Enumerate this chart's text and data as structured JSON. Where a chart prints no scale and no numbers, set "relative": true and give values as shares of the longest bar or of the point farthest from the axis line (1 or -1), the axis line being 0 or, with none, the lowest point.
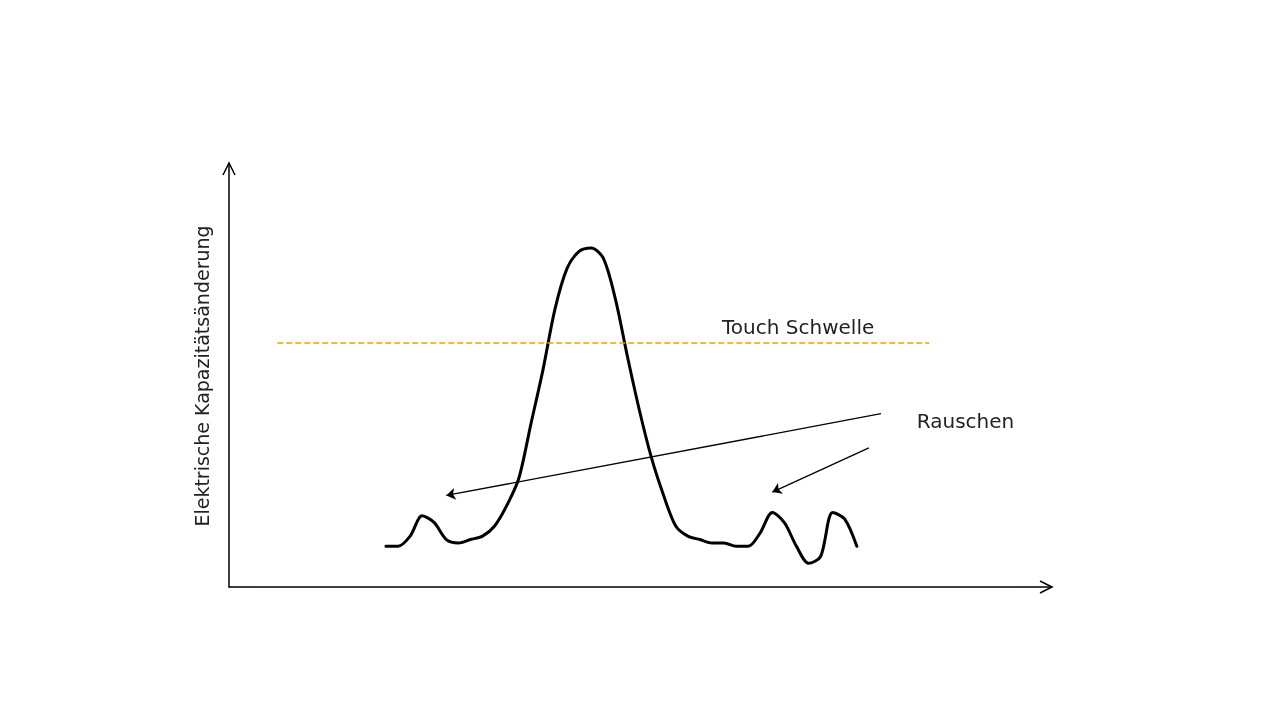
{
  "chart_data": {
    "type": "line",
    "relative": true,
    "ylabel": "Elektrische Kapazitätsänderung",
    "categories": [
      null,
      null,
      null,
      null,
      null,
      null,
      null,
      null,
      null,
      null,
      null,
      null,
      null,
      null,
      null,
      null,
      null,
      null,
      null,
      null,
      null,
      null,
      null,
      null,
      null,
      null,
      null,
      null,
      null,
      null,
      null,
      null,
      null,
      null,
      null,
      null,
      null,
      null,
      null,
      null,
      null,
      null,
      null,
      null,
      null,
      null,
      null,
      null,
      null,
      null,
      null,
      null,
      null,
      null,
      null,
      null,
      null,
      null,
      null,
      null,
      null,
      null,
      null,
      null,
      null,
      null,
      null,
      null,
      null
    ],
    "series": [
      {
        "color": "#000000",
        "values": [
          null,
          null,
          null,
          null,
          null,
          null,
          null,
          null,
          null,
          null,
          null,
          null,
          null,
          0.12,
          0.12,
          0.15,
          0.21,
          0.19,
          0.14,
          0.13,
          0.14,
          0.15,
          0.18,
          0.24,
          0.32,
          0.48,
          0.64,
          0.82,
          0.94,
          0.99,
          1,
          0.97,
          0.85,
          0.68,
          0.52,
          0.38,
          0.27,
          0.18,
          0.15,
          0.14,
          0.13,
          0.13,
          0.12,
          0.12,
          0.16,
          0.22,
          0.19,
          0.12,
          0.07,
          0.09,
          0.22,
          0.2,
          0.12,
          null,
          null,
          null,
          null,
          null,
          null,
          null,
          null,
          null,
          null,
          null,
          null,
          null,
          null,
          null,
          null
        ]
      }
    ],
    "ref_lines": [
      {
        "axis": "y",
        "value": 0.72,
        "label": "Touch Schwelle",
        "color": "#f0a000",
        "line_style": "dashed"
      }
    ],
    "annotations": [
      "Rauschen"
    ],
    "marker": "none",
    "line_style": "solid",
    "grid": false
  }
}
